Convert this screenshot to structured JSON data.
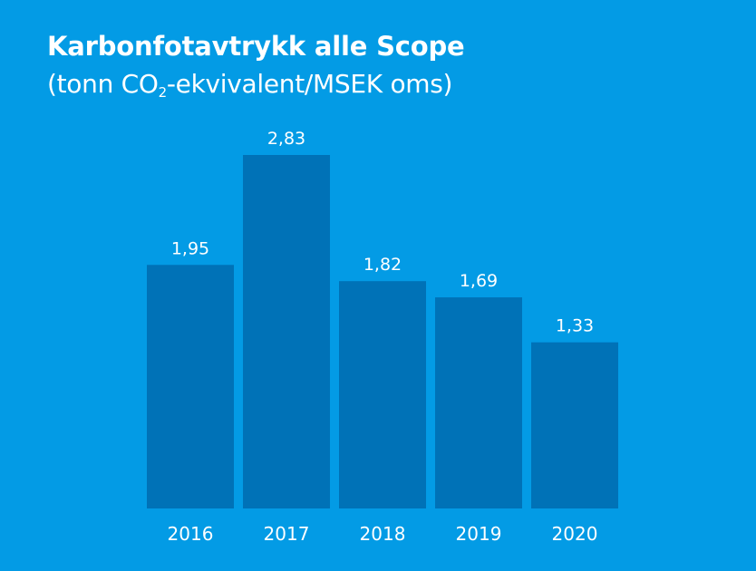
{
  "title": "Karbonfotavtrykk alle Scope",
  "subtitle": {
    "before": "(tonn CO",
    "sub": "2",
    "after": "-ekvivalent/MSEK oms)"
  },
  "colors": {
    "background": "#039be5",
    "bar": "#0072b7",
    "text": "#ffffff"
  },
  "chart_data": {
    "type": "bar",
    "title": "Karbonfotavtrykk alle Scope",
    "subtitle": "(tonn CO2-ekvivalent/MSEK oms)",
    "categories": [
      "2016",
      "2017",
      "2018",
      "2019",
      "2020"
    ],
    "values": [
      1.95,
      2.83,
      1.82,
      1.69,
      1.33
    ],
    "value_labels": [
      "1,95",
      "2,83",
      "1,82",
      "1,69",
      "1,33"
    ],
    "xlabel": "",
    "ylabel": "",
    "ylim": [
      0,
      2.83
    ],
    "grid": false,
    "legend": "none"
  }
}
